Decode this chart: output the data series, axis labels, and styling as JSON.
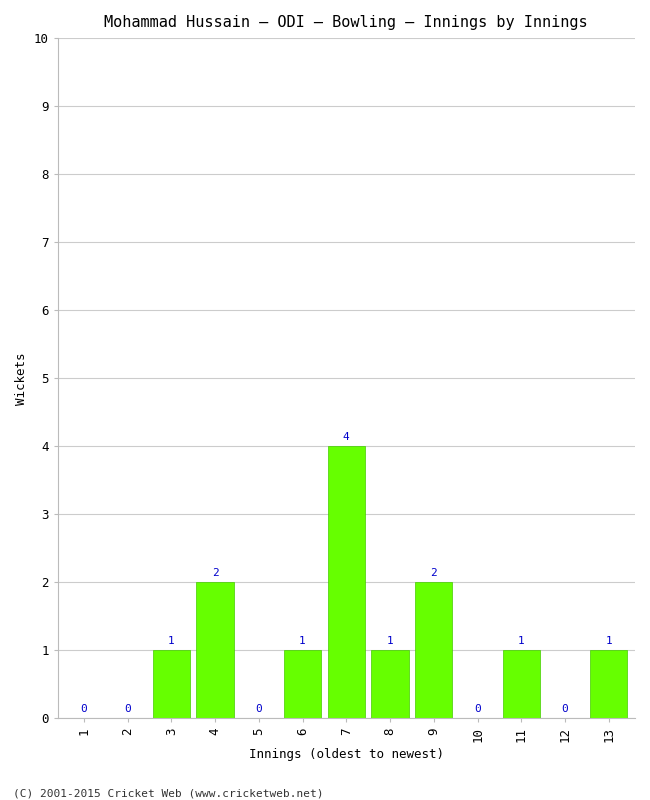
{
  "title": "Mohammad Hussain – ODI – Bowling – Innings by Innings",
  "xlabel": "Innings (oldest to newest)",
  "ylabel": "Wickets",
  "categories": [
    "1",
    "2",
    "3",
    "4",
    "5",
    "6",
    "7",
    "8",
    "9",
    "10",
    "11",
    "12",
    "13"
  ],
  "values": [
    0,
    0,
    1,
    2,
    0,
    1,
    4,
    1,
    2,
    0,
    1,
    0,
    1
  ],
  "bar_color": "#66ff00",
  "bar_edge_color": "#44cc00",
  "label_color": "#0000cc",
  "background_color": "#ffffff",
  "grid_color": "#cccccc",
  "ylim": [
    0,
    10
  ],
  "yticks": [
    0,
    1,
    2,
    3,
    4,
    5,
    6,
    7,
    8,
    9,
    10
  ],
  "title_fontsize": 11,
  "axis_label_fontsize": 9,
  "tick_fontsize": 9,
  "bar_label_fontsize": 8,
  "footer_text": "(C) 2001-2015 Cricket Web (www.cricketweb.net)",
  "footer_fontsize": 8
}
